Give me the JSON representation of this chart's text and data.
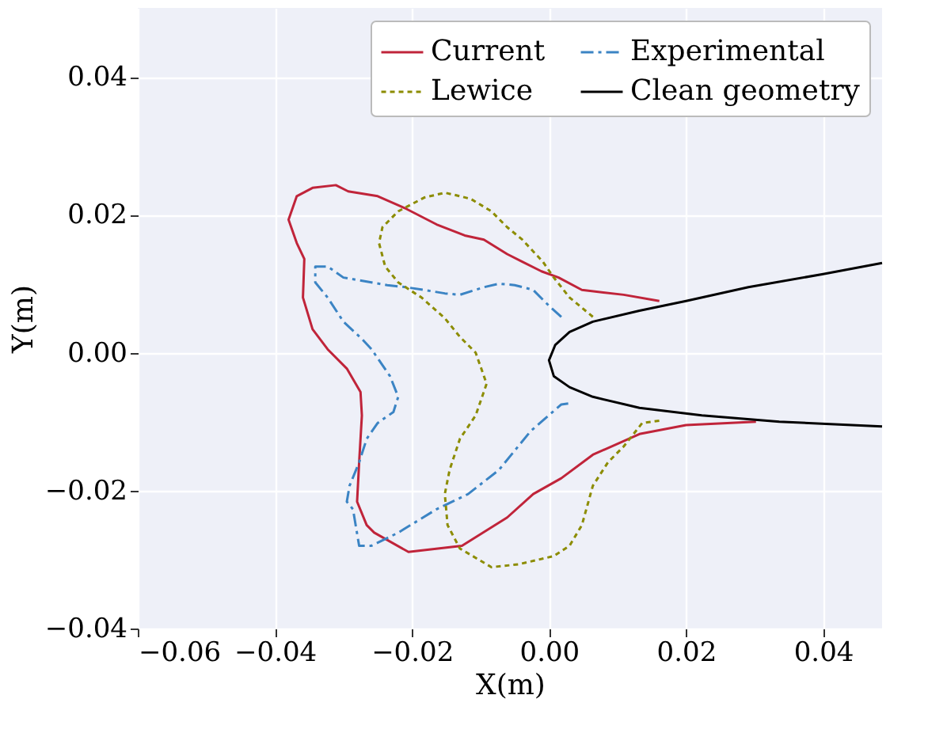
{
  "chart_data": {
    "type": "line",
    "xlabel": "X(m)",
    "ylabel": "Y(m)",
    "xlim": [
      -0.06,
      0.0486
    ],
    "ylim": [
      -0.04,
      0.05
    ],
    "xticks": [
      {
        "value": -0.06,
        "label": "−0.06"
      },
      {
        "value": -0.04,
        "label": "−0.04"
      },
      {
        "value": -0.02,
        "label": "−0.02"
      },
      {
        "value": 0,
        "label": "0.00"
      },
      {
        "value": 0.02,
        "label": "0.02"
      },
      {
        "value": 0.04,
        "label": "0.04"
      }
    ],
    "yticks": [
      {
        "value": -0.04,
        "label": "−0.04"
      },
      {
        "value": -0.02,
        "label": "−0.02"
      },
      {
        "value": 0,
        "label": "0.00"
      },
      {
        "value": 0.02,
        "label": "0.02"
      },
      {
        "value": 0.04,
        "label": "0.04"
      }
    ],
    "grid": true,
    "legend": "top right",
    "marker": "none",
    "series": [
      {
        "name": "Current",
        "color": "#c0243a",
        "line_style": "solid",
        "x": [
          0.0161,
          0.0109,
          0.0048,
          0.0014,
          -0.0011,
          -0.0039,
          -0.0061,
          -0.0095,
          -0.0123,
          -0.0164,
          -0.0209,
          -0.025,
          -0.0293,
          -0.0311,
          -0.0345,
          -0.0368,
          -0.038,
          -0.0368,
          -0.0357,
          -0.0359,
          -0.0345,
          -0.0323,
          -0.0295,
          -0.0275,
          -0.0273,
          -0.0277,
          -0.028,
          -0.0266,
          -0.0255,
          -0.0205,
          -0.0127,
          -0.0061,
          -0.0023,
          0.0018,
          0.0064,
          0.0132,
          0.02,
          0.0302
        ],
        "values": [
          0.0075,
          0.0084,
          0.0091,
          0.0109,
          0.0118,
          0.0132,
          0.0143,
          0.0164,
          0.017,
          0.0186,
          0.0209,
          0.0227,
          0.0234,
          0.0243,
          0.0239,
          0.0227,
          0.0193,
          0.0159,
          0.0136,
          0.008,
          0.0034,
          0.0005,
          -0.0023,
          -0.0057,
          -0.0091,
          -0.0159,
          -0.0216,
          -0.025,
          -0.0261,
          -0.0289,
          -0.028,
          -0.0239,
          -0.0205,
          -0.0182,
          -0.0148,
          -0.0118,
          -0.0105,
          -0.01
        ]
      },
      {
        "name": "Experimental",
        "color": "#3b84c4",
        "line_style": "dashed",
        "x": [
          0.0018,
          0.0,
          -0.0023,
          -0.005,
          -0.0073,
          -0.0095,
          -0.013,
          -0.0152,
          -0.0182,
          -0.0209,
          -0.0236,
          -0.0277,
          -0.03,
          -0.0323,
          -0.0341,
          -0.0341,
          -0.0323,
          -0.03,
          -0.0273,
          -0.0259,
          -0.0232,
          -0.022,
          -0.0227,
          -0.025,
          -0.0266,
          -0.0277,
          -0.0291,
          -0.0295,
          -0.0286,
          -0.0277,
          -0.0259,
          -0.022,
          -0.0164,
          -0.0118,
          -0.0073,
          -0.0027,
          0.0018,
          0.0034
        ],
        "values": [
          0.0052,
          0.0068,
          0.0091,
          0.0098,
          0.01,
          0.0095,
          0.0084,
          0.0086,
          0.0091,
          0.0095,
          0.0098,
          0.0105,
          0.0109,
          0.0125,
          0.0125,
          0.0102,
          0.008,
          0.0045,
          0.002,
          0.0005,
          -0.0034,
          -0.0064,
          -0.0086,
          -0.0102,
          -0.0125,
          -0.0159,
          -0.0193,
          -0.0216,
          -0.0227,
          -0.028,
          -0.028,
          -0.0261,
          -0.0227,
          -0.0205,
          -0.017,
          -0.0114,
          -0.0075,
          -0.0073
        ]
      },
      {
        "name": "Lewice",
        "color": "#8c8c00",
        "line_style": "dotted",
        "x": [
          0.0064,
          0.003,
          0.0007,
          -0.0009,
          -0.0039,
          -0.0061,
          -0.0084,
          -0.0114,
          -0.013,
          -0.0152,
          -0.0182,
          -0.022,
          -0.0243,
          -0.0248,
          -0.0239,
          -0.022,
          -0.0186,
          -0.0152,
          -0.013,
          -0.0107,
          -0.0091,
          -0.0107,
          -0.013,
          -0.0145,
          -0.0152,
          -0.0148,
          -0.013,
          -0.0084,
          -0.0045,
          0.0007,
          0.003,
          0.0048,
          0.0064,
          0.0086,
          0.0109,
          0.0136,
          0.0166
        ],
        "values": [
          0.0052,
          0.008,
          0.0109,
          0.0132,
          0.0164,
          0.0182,
          0.0205,
          0.0223,
          0.0227,
          0.0232,
          0.0225,
          0.0205,
          0.0182,
          0.0159,
          0.0125,
          0.0102,
          0.008,
          0.005,
          0.0023,
          0.0,
          -0.0045,
          -0.0091,
          -0.0125,
          -0.017,
          -0.0205,
          -0.025,
          -0.0284,
          -0.0311,
          -0.0307,
          -0.0295,
          -0.028,
          -0.025,
          -0.0193,
          -0.0159,
          -0.0136,
          -0.0102,
          -0.0098
        ]
      },
      {
        "name": "Clean geometry",
        "color": "#000000",
        "line_style": "solid",
        "x": [
          0.0486,
          0.04,
          0.0291,
          0.02,
          0.0132,
          0.0064,
          0.003,
          0.0009,
          0.0,
          0.0007,
          0.003,
          0.0064,
          0.0132,
          0.0223,
          0.0336,
          0.0486
        ],
        "values": [
          0.013,
          0.0114,
          0.0095,
          0.0075,
          0.0061,
          0.0045,
          0.003,
          0.0011,
          -0.0011,
          -0.0034,
          -0.005,
          -0.0064,
          -0.008,
          -0.0091,
          -0.01,
          -0.0107
        ]
      }
    ]
  }
}
